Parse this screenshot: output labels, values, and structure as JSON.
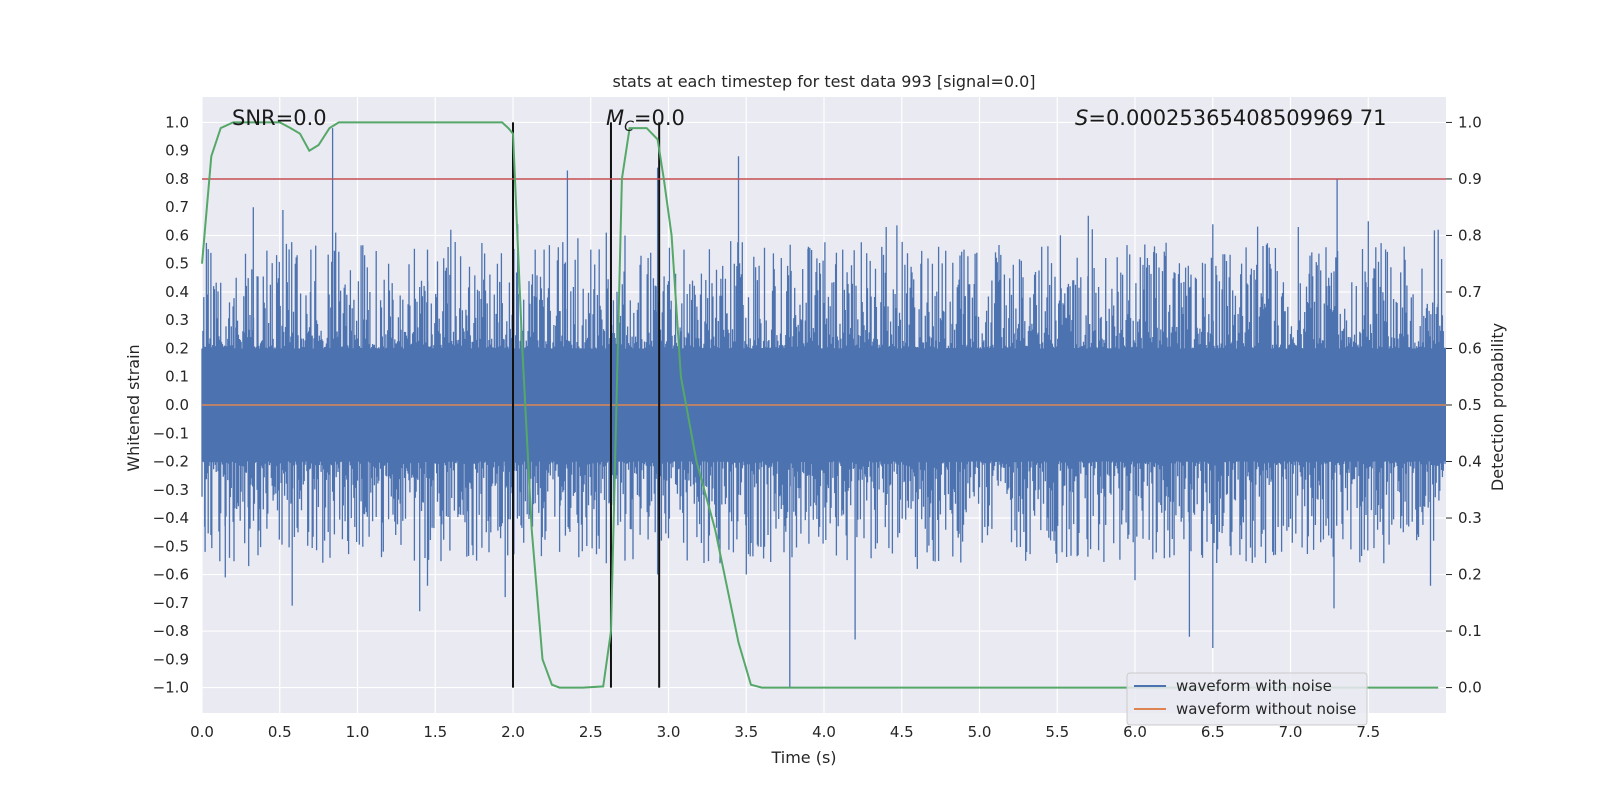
{
  "chart_data": {
    "type": "line",
    "title": "stats at each timestep for test data 993 [signal=0.0]",
    "xlabel": "Time (s)",
    "ylabel_left": "Whitened strain",
    "ylabel_right": "Detection probability",
    "xlim": [
      0.0,
      8.0
    ],
    "ylim_left": [
      -1.09,
      1.09
    ],
    "ylim_right": [
      -0.045,
      1.045
    ],
    "x_ticks": [
      0.0,
      0.5,
      1.0,
      1.5,
      2.0,
      2.5,
      3.0,
      3.5,
      4.0,
      4.5,
      5.0,
      5.5,
      6.0,
      6.5,
      7.0,
      7.5
    ],
    "x_tick_labels": [
      "0.0",
      "0.5",
      "1.0",
      "1.5",
      "2.0",
      "2.5",
      "3.0",
      "3.5",
      "4.0",
      "4.5",
      "5.0",
      "5.5",
      "6.0",
      "6.5",
      "7.0",
      "7.5"
    ],
    "y_left_ticks": [
      1.0,
      0.9,
      0.8,
      0.7,
      0.6,
      0.5,
      0.4,
      0.3,
      0.2,
      0.1,
      0.0,
      -0.1,
      -0.2,
      -0.3,
      -0.4,
      -0.5,
      -0.6,
      -0.7,
      -0.8,
      -0.9,
      -1.0
    ],
    "y_left_tick_labels": [
      "1.0",
      "0.9",
      "0.8",
      "0.7",
      "0.6",
      "0.5",
      "0.4",
      "0.3",
      "0.2",
      "0.1",
      "0.0",
      "−0.1",
      "−0.2",
      "−0.3",
      "−0.4",
      "−0.5",
      "−0.6",
      "−0.7",
      "−0.8",
      "−0.9",
      "−1.0"
    ],
    "y_right_ticks": [
      1.0,
      0.9,
      0.8,
      0.7,
      0.6,
      0.5,
      0.4,
      0.3,
      0.2,
      0.1,
      0.0
    ],
    "y_right_tick_labels": [
      "1.0",
      "0.9",
      "0.8",
      "0.7",
      "0.6",
      "0.5",
      "0.4",
      "0.3",
      "0.2",
      "0.1",
      "0.0"
    ],
    "threshold": {
      "value": 0.9,
      "axis": "right",
      "color": "#c44e52"
    },
    "vertical_markers": [
      2.0,
      2.63,
      2.94
    ],
    "annotations": {
      "snr": "SNR=0.0",
      "mc_symbol": "M",
      "mc_sub": "C",
      "mc_value": "=0.0",
      "s_symbol": "S",
      "s_value": "=0.00025365408509969 71"
    },
    "series": [
      {
        "name": "waveform with noise",
        "color": "#4c72b0",
        "description": "whitened noise, sampled 2048 Hz, mostly within ±0.2 with spikes",
        "spikes_pos": [
          [
            0.08,
            0.41
          ],
          [
            0.22,
            0.45
          ],
          [
            0.32,
            0.48
          ],
          [
            0.33,
            0.7
          ],
          [
            0.52,
            0.69
          ],
          [
            0.6,
            0.5
          ],
          [
            0.7,
            0.55
          ],
          [
            0.84,
            0.98
          ],
          [
            0.86,
            0.61
          ],
          [
            1.2,
            0.5
          ],
          [
            1.45,
            0.55
          ],
          [
            1.6,
            0.62
          ],
          [
            1.9,
            0.5
          ],
          [
            2.03,
            0.64
          ],
          [
            2.2,
            0.55
          ],
          [
            2.35,
            0.83
          ],
          [
            2.5,
            0.55
          ],
          [
            2.6,
            0.61
          ],
          [
            2.72,
            0.6
          ],
          [
            2.93,
            0.84
          ],
          [
            3.1,
            0.55
          ],
          [
            3.45,
            0.88
          ],
          [
            3.9,
            0.56
          ],
          [
            4.4,
            0.63
          ],
          [
            4.9,
            0.55
          ],
          [
            5.4,
            0.56
          ],
          [
            5.7,
            0.67
          ],
          [
            6.5,
            0.64
          ],
          [
            7.05,
            0.63
          ],
          [
            7.3,
            0.8
          ],
          [
            7.5,
            0.65
          ],
          [
            7.95,
            0.62
          ]
        ],
        "spikes_neg": [
          [
            0.02,
            -0.52
          ],
          [
            0.15,
            -0.61
          ],
          [
            0.3,
            -0.57
          ],
          [
            0.58,
            -0.71
          ],
          [
            1.4,
            -0.73
          ],
          [
            1.45,
            -0.64
          ],
          [
            1.95,
            -0.68
          ],
          [
            2.3,
            -0.52
          ],
          [
            2.6,
            -0.56
          ],
          [
            2.93,
            -0.6
          ],
          [
            3.5,
            -0.6
          ],
          [
            3.78,
            -1.0
          ],
          [
            4.2,
            -0.83
          ],
          [
            4.6,
            -0.58
          ],
          [
            5.3,
            -0.52
          ],
          [
            6.0,
            -0.62
          ],
          [
            6.35,
            -0.82
          ],
          [
            6.5,
            -0.86
          ],
          [
            7.28,
            -0.72
          ],
          [
            7.6,
            -0.55
          ],
          [
            7.9,
            -0.64
          ]
        ]
      },
      {
        "name": "waveform without noise",
        "color": "#dd8452",
        "x": [
          0.0,
          8.0
        ],
        "y": [
          0.0,
          0.0
        ]
      },
      {
        "name": "detection probability",
        "color": "#55a868",
        "axis": "right",
        "x": [
          0.0,
          0.06,
          0.12,
          0.2,
          0.3,
          0.4,
          0.5,
          0.57,
          0.63,
          0.69,
          0.75,
          0.82,
          0.88,
          1.0,
          1.3,
          1.6,
          1.8,
          1.93,
          1.97,
          2.0,
          2.06,
          2.12,
          2.19,
          2.25,
          2.3,
          2.45,
          2.58,
          2.63,
          2.7,
          2.75,
          2.86,
          2.93,
          2.97,
          3.02,
          3.08,
          3.18,
          3.3,
          3.45,
          3.53,
          3.6,
          4.0,
          5.0,
          6.0,
          7.0,
          7.95
        ],
        "y": [
          0.75,
          0.94,
          0.99,
          1.0,
          1.0,
          1.0,
          1.0,
          0.99,
          0.98,
          0.95,
          0.96,
          0.99,
          1.0,
          1.0,
          1.0,
          1.0,
          1.0,
          1.0,
          0.99,
          0.98,
          0.6,
          0.28,
          0.05,
          0.005,
          0.0,
          0.0,
          0.002,
          0.1,
          0.9,
          0.99,
          0.99,
          0.97,
          0.9,
          0.8,
          0.55,
          0.4,
          0.28,
          0.08,
          0.005,
          0.0,
          0.0,
          0.0,
          0.0,
          0.0,
          0.0
        ]
      }
    ],
    "legend": {
      "position": "bottom-right",
      "entries": [
        {
          "label": "waveform with noise",
          "color": "#4c72b0"
        },
        {
          "label": "waveform without noise",
          "color": "#dd8452"
        }
      ]
    }
  }
}
